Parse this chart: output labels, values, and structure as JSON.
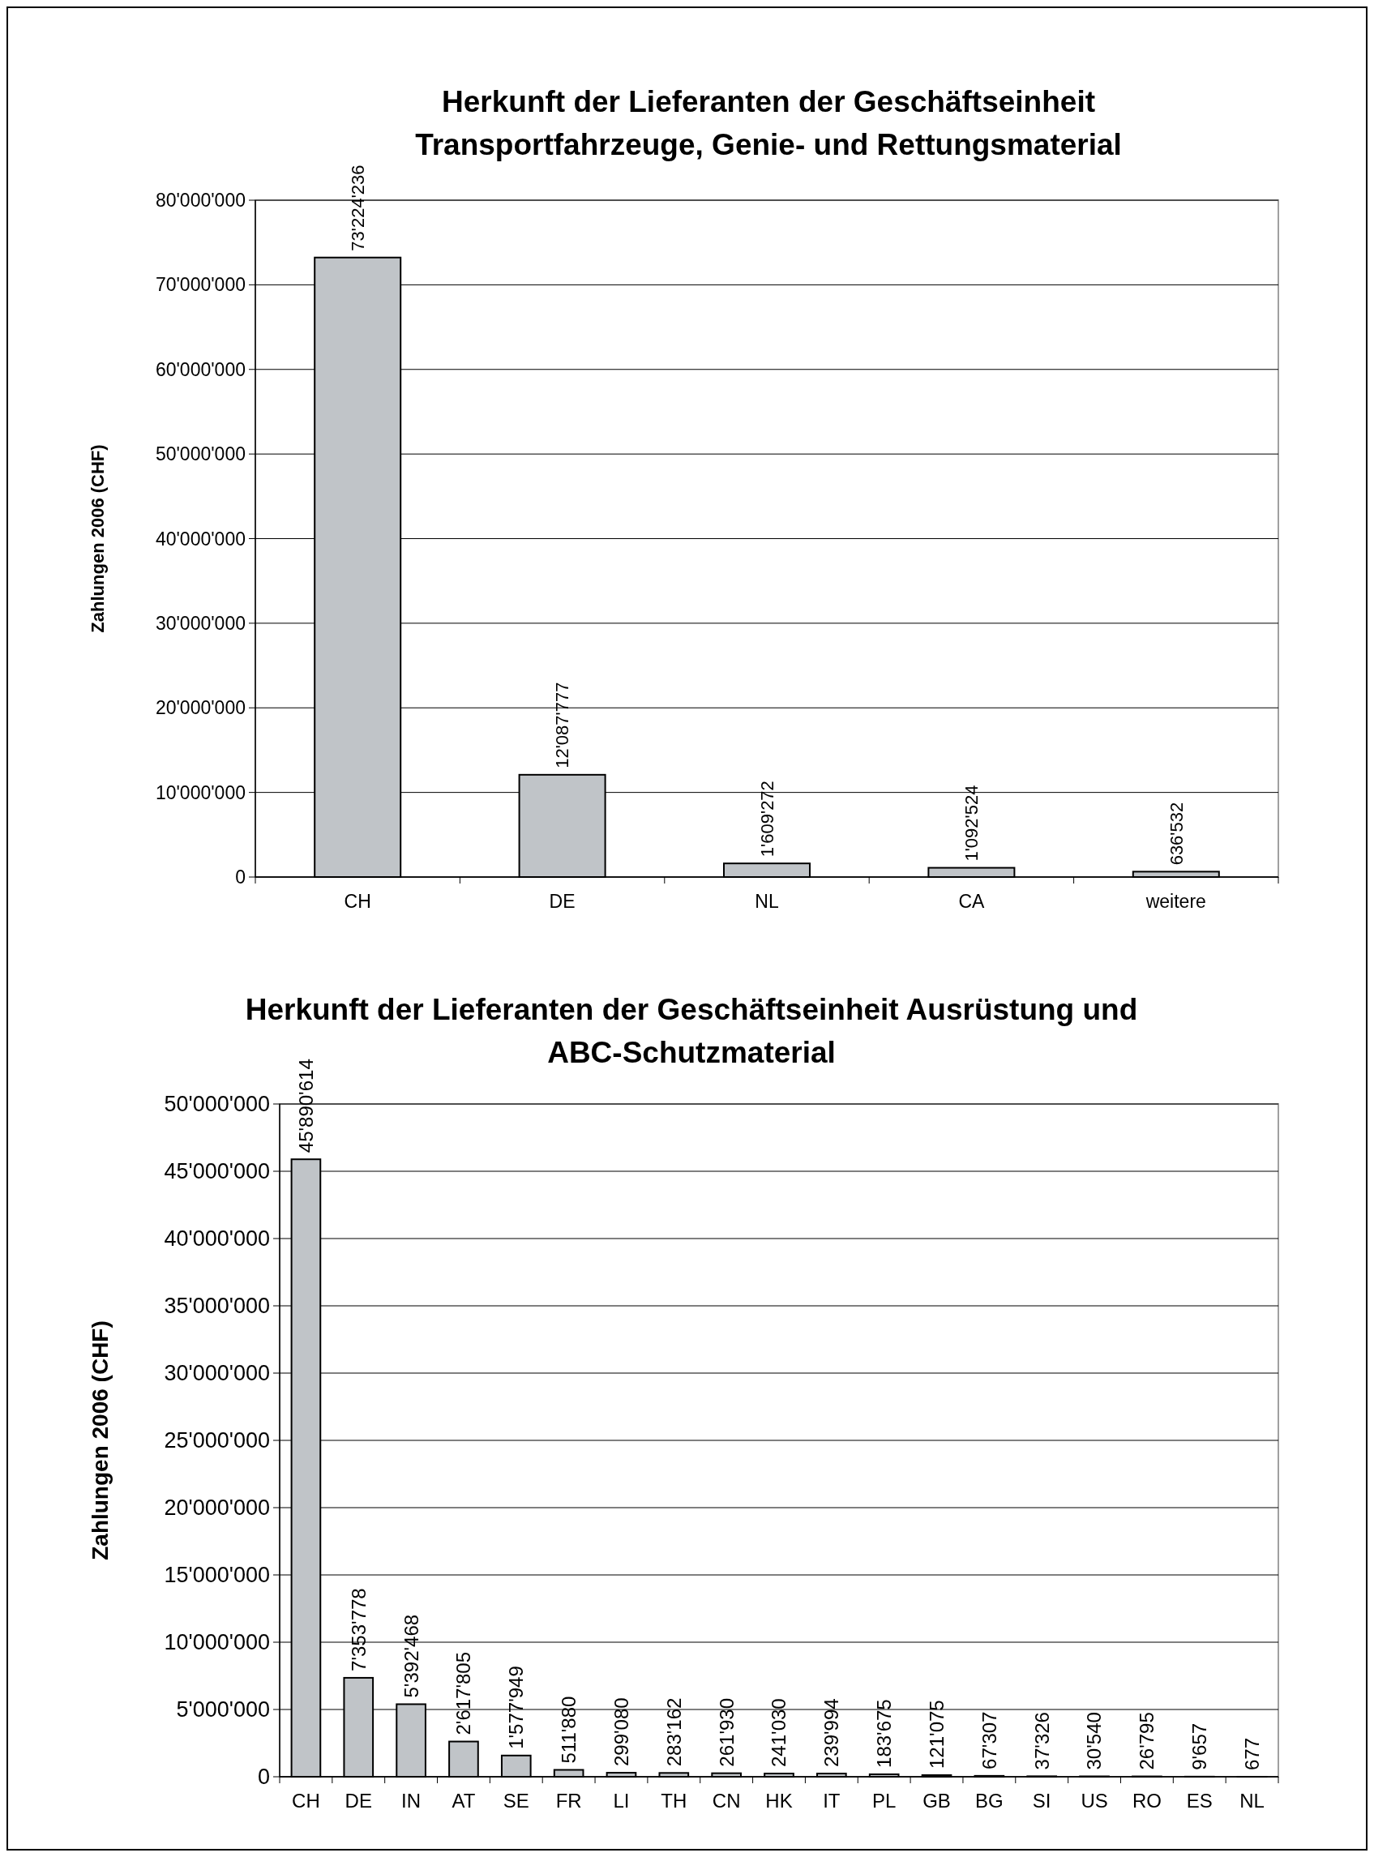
{
  "chart_data": [
    {
      "type": "bar",
      "title": "Herkunft der Lieferanten der Geschäftseinheit Transportfahrzeuge, Genie- und Rettungsmaterial",
      "ylabel": "Zahlungen 2006 (CHF)",
      "categories": [
        "CH",
        "DE",
        "NL",
        "CA",
        "weitere"
      ],
      "color": "#c0c4c8",
      "values": [
        73224236,
        12087777,
        1609272,
        1092524,
        636532
      ],
      "value_labels": [
        "73'224'236",
        "12'087'777",
        "1'609'272",
        "1'092'524",
        "636'532"
      ],
      "ylim": [
        0,
        80000000
      ],
      "yticks": [
        0,
        {
          "value": 10000000,
          "label": "10'000'000"
        },
        {
          "value": 20000000,
          "label": "20'000'000"
        },
        {
          "value": 30000000,
          "label": "30'000'000"
        },
        {
          "value": 40000000,
          "label": "40'000'000"
        },
        {
          "value": 50000000,
          "label": "50'000'000"
        },
        {
          "value": 60000000,
          "label": "60'000'000"
        },
        {
          "value": 70000000,
          "label": "70'000'000"
        },
        {
          "value": 80000000,
          "label": "80'000'000"
        }
      ],
      "grid": "y"
    },
    {
      "type": "bar",
      "title": "Herkunft der Lieferanten der Geschäftseinheit Ausrüstung und ABC-Schutzmaterial",
      "ylabel": "Zahlungen 2006 (CHF)",
      "categories": [
        "CH",
        "DE",
        "IN",
        "AT",
        "SE",
        "FR",
        "LI",
        "TH",
        "CN",
        "HK",
        "IT",
        "PL",
        "GB",
        "BG",
        "SI",
        "US",
        "RO",
        "ES",
        "NL"
      ],
      "color": "#c0c4c8",
      "values": [
        45890614,
        7353778,
        5392468,
        2617805,
        1577949,
        511880,
        299080,
        283162,
        261930,
        241030,
        239994,
        183675,
        121075,
        67307,
        37326,
        30540,
        26795,
        9657,
        677
      ],
      "value_labels": [
        "45'890'614",
        "7'353'778",
        "5'392'468",
        "2'617'805",
        "1'577'949",
        "511'880",
        "299'080",
        "283'162",
        "261'930",
        "241'030",
        "239'994",
        "183'675",
        "121'075",
        "67'307",
        "37'326",
        "30'540",
        "26'795",
        "9'657",
        "677"
      ],
      "ylim": [
        0,
        50000000
      ],
      "yticks": [
        0,
        {
          "value": 5000000,
          "label": "5'000'000"
        },
        {
          "value": 10000000,
          "label": "10'000'000"
        },
        {
          "value": 15000000,
          "label": "15'000'000"
        },
        {
          "value": 20000000,
          "label": "20'000'000"
        },
        {
          "value": 25000000,
          "label": "25'000'000"
        },
        {
          "value": 30000000,
          "label": "30'000'000"
        },
        {
          "value": 35000000,
          "label": "35'000'000"
        },
        {
          "value": 40000000,
          "label": "40'000'000"
        },
        {
          "value": 45000000,
          "label": "45'000'000"
        },
        {
          "value": 50000000,
          "label": "50'000'000"
        }
      ],
      "grid": "y"
    }
  ]
}
